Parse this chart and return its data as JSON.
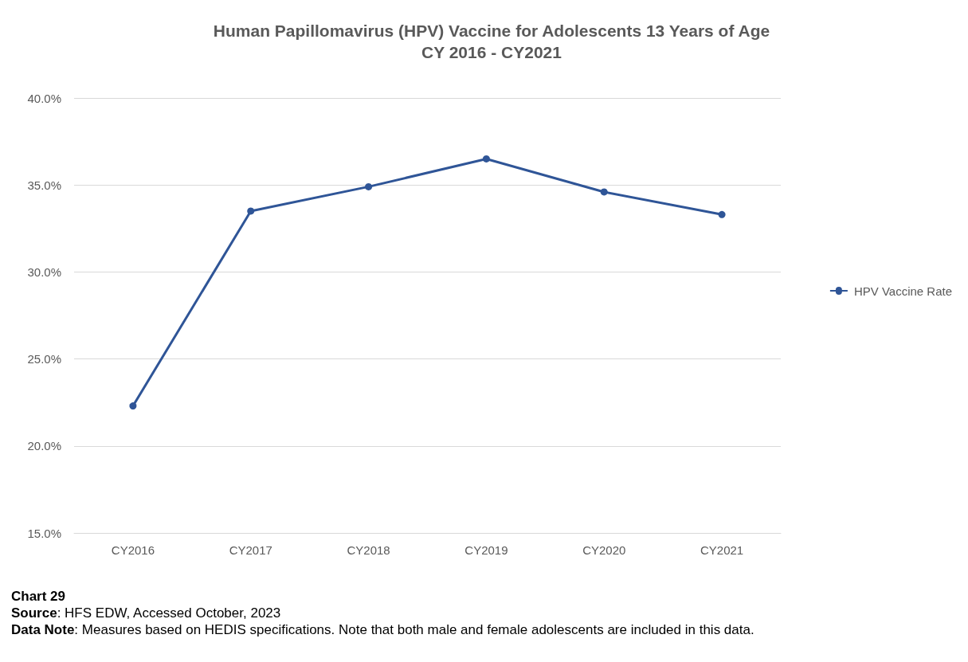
{
  "chart_data": {
    "type": "line",
    "title": "Human Papillomavirus (HPV) Vaccine for Adolescents 13 Years of Age\nCY 2016 - CY2021",
    "categories": [
      "CY2016",
      "CY2017",
      "CY2018",
      "CY2019",
      "CY2020",
      "CY2021"
    ],
    "series": [
      {
        "name": "HPV Vaccine Rate",
        "color": "#2f5597",
        "values": [
          22.3,
          33.5,
          34.9,
          36.5,
          34.6,
          33.3
        ]
      }
    ],
    "ylim": [
      15,
      40
    ],
    "yticks": [
      {
        "value": 15,
        "label": "15.0%"
      },
      {
        "value": 20,
        "label": "20.0%"
      },
      {
        "value": 25,
        "label": "25.0%"
      },
      {
        "value": 30,
        "label": "30.0%"
      },
      {
        "value": 35,
        "label": "35.0%"
      },
      {
        "value": 40,
        "label": "40.0%"
      }
    ],
    "grid": "y",
    "legend": "right",
    "marker": "circle",
    "line_style": "solid",
    "annotations": [
      "Chart 29",
      "Source: HFS EDW, Accessed October, 2023",
      "Data Note: Measures based on HEDIS specifications. Note that both male and female adolescents are included in this data."
    ]
  }
}
